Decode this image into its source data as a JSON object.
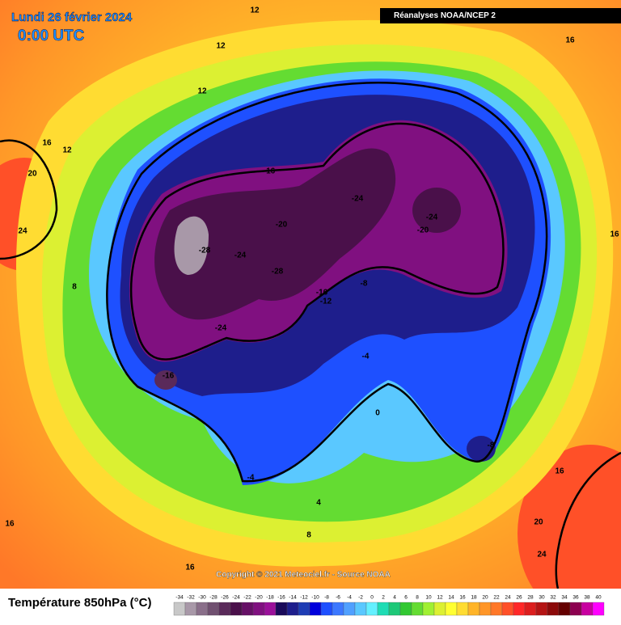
{
  "header": {
    "date": "Lundi 26 février 2024",
    "time": "0:00 UTC",
    "source_box": "Réanalyses NOAA/NCEP 2",
    "copyright": "Copyright © 2021 Meteociel.fr - Source NOAA"
  },
  "legend": {
    "title": "Température 850hPa (°C)",
    "ticks": [
      -34,
      -32,
      -30,
      -28,
      -26,
      -24,
      -22,
      -20,
      -18,
      -16,
      -14,
      -12,
      -10,
      -8,
      -6,
      -4,
      -2,
      0,
      2,
      4,
      6,
      8,
      10,
      12,
      14,
      16,
      18,
      20,
      22,
      24,
      26,
      28,
      30,
      32,
      34,
      36,
      38,
      40
    ],
    "colors": [
      "#c8c8c8",
      "#a898a8",
      "#8a6f8a",
      "#705070",
      "#5a2a5a",
      "#4a104a",
      "#661066",
      "#801080",
      "#9a109a",
      "#1a0a5a",
      "#1e1e8c",
      "#1e3cb4",
      "#0000dc",
      "#1e50ff",
      "#3c78ff",
      "#50a0ff",
      "#5ac8ff",
      "#64f0ff",
      "#1edcb4",
      "#1ec878",
      "#32c832",
      "#64dc32",
      "#a0f032",
      "#dcf032",
      "#ffff32",
      "#ffdc32",
      "#ffb428",
      "#ff9628",
      "#ff7828",
      "#ff5028",
      "#ff2828",
      "#dc1e1e",
      "#b41414",
      "#8c0a0a",
      "#640000",
      "#8c0050",
      "#c800a0",
      "#ff00ff"
    ]
  },
  "map": {
    "contour_labels": [
      "12",
      "12",
      "12",
      "16",
      "16",
      "12",
      "20",
      "24",
      "-16",
      "-24",
      "-24",
      "-20",
      "-20",
      "-28",
      "-24",
      "-28",
      "-16",
      "-12",
      "-8",
      "-24",
      "-16",
      "-4",
      "0",
      "-8",
      "16",
      "-4",
      "4",
      "8",
      "16",
      "20",
      "24",
      "16",
      "8",
      "16"
    ]
  }
}
